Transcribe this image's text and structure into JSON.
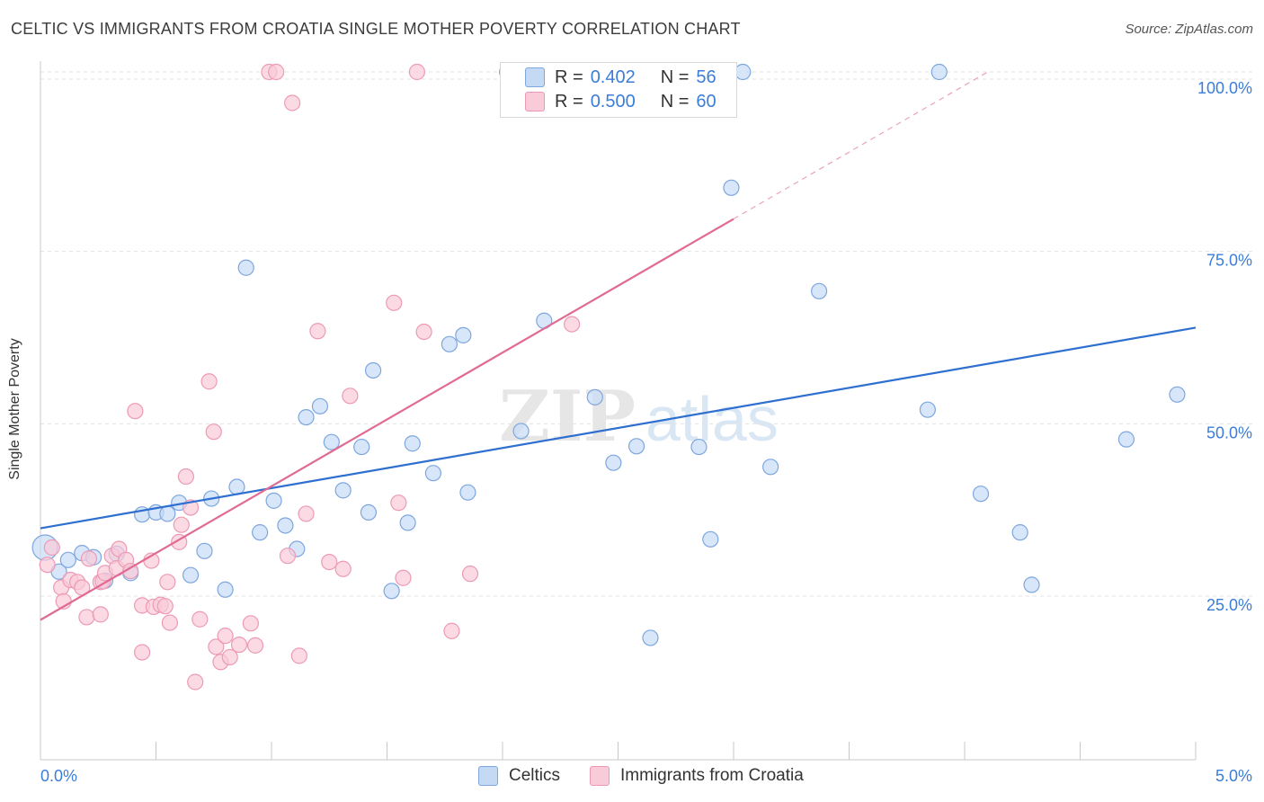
{
  "title": "CELTIC VS IMMIGRANTS FROM CROATIA SINGLE MOTHER POVERTY CORRELATION CHART",
  "source": "Source: ZipAtlas.com",
  "watermark": "ZIPatlas",
  "legend": {
    "rows": [
      {
        "r_label": "R =",
        "r_value": "0.402",
        "n_label": "N =",
        "n_value": "56"
      },
      {
        "r_label": "R =",
        "r_value": "0.500",
        "n_label": "N =",
        "n_value": "60"
      }
    ]
  },
  "bottom_legend": {
    "series1": "Celtics",
    "series2": "Immigrants from Croatia"
  },
  "colors": {
    "blue_fill": "#aecbf0",
    "blue_line": "#2f6fd0",
    "pink_fill": "#f6b8cb",
    "pink_line": "#e06a92",
    "tick_label": "#3b7dd8"
  },
  "chart_data": {
    "type": "scatter",
    "title": "CELTIC VS IMMIGRANTS FROM CROATIA SINGLE MOTHER POVERTY CORRELATION CHART",
    "xlabel": "",
    "ylabel": "Single Mother Poverty",
    "xlim": [
      0,
      5
    ],
    "ylim": [
      0,
      102
    ],
    "x_tick_labels": [
      "0.0%",
      "5.0%"
    ],
    "y_ticks": [
      25,
      50,
      75,
      100
    ],
    "y_tick_labels": [
      "25.0%",
      "50.0%",
      "75.0%",
      "100.0%"
    ],
    "grid": true,
    "legend_position": "top-center",
    "series": [
      {
        "name": "Celtics",
        "r": 0.402,
        "n": 56,
        "trend": {
          "x": [
            0,
            5
          ],
          "y": [
            33.8,
            62.9
          ],
          "dashed_from_x": null
        },
        "points": [
          [
            0.02,
            31.0
          ],
          [
            0.08,
            27.5
          ],
          [
            0.12,
            29.2
          ],
          [
            0.18,
            30.2
          ],
          [
            0.23,
            29.6
          ],
          [
            0.28,
            26.2
          ],
          [
            0.33,
            30.1
          ],
          [
            0.39,
            27.3
          ],
          [
            0.44,
            35.8
          ],
          [
            0.5,
            36.1
          ],
          [
            0.55,
            35.9
          ],
          [
            0.6,
            37.5
          ],
          [
            0.65,
            27.0
          ],
          [
            0.71,
            30.5
          ],
          [
            0.74,
            38.1
          ],
          [
            0.8,
            24.9
          ],
          [
            0.85,
            39.8
          ],
          [
            0.89,
            71.6
          ],
          [
            0.95,
            33.2
          ],
          [
            1.01,
            37.8
          ],
          [
            1.06,
            34.2
          ],
          [
            1.11,
            30.8
          ],
          [
            1.15,
            49.9
          ],
          [
            1.21,
            51.5
          ],
          [
            1.26,
            46.3
          ],
          [
            1.31,
            39.3
          ],
          [
            1.39,
            45.6
          ],
          [
            1.42,
            36.1
          ],
          [
            1.44,
            56.7
          ],
          [
            1.52,
            24.7
          ],
          [
            1.59,
            34.6
          ],
          [
            1.61,
            46.1
          ],
          [
            1.7,
            41.8
          ],
          [
            1.77,
            60.5
          ],
          [
            1.83,
            61.8
          ],
          [
            1.85,
            39.0
          ],
          [
            2.02,
            100.0
          ],
          [
            2.08,
            47.9
          ],
          [
            2.18,
            63.9
          ],
          [
            2.4,
            52.8
          ],
          [
            2.48,
            43.3
          ],
          [
            2.58,
            45.7
          ],
          [
            2.64,
            17.9
          ],
          [
            2.85,
            45.6
          ],
          [
            2.9,
            32.2
          ],
          [
            2.99,
            83.2
          ],
          [
            3.04,
            100.0
          ],
          [
            3.16,
            42.7
          ],
          [
            3.37,
            68.2
          ],
          [
            3.84,
            51.0
          ],
          [
            3.89,
            100.0
          ],
          [
            4.07,
            38.8
          ],
          [
            4.24,
            33.2
          ],
          [
            4.29,
            25.6
          ],
          [
            4.7,
            46.7
          ],
          [
            4.92,
            53.2
          ]
        ]
      },
      {
        "name": "Immigrants from Croatia",
        "r": 0.5,
        "n": 60,
        "trend": {
          "x": [
            0,
            4.1
          ],
          "y": [
            20.5,
            100.0
          ],
          "dashed_from_x": 3.0
        },
        "points": [
          [
            0.03,
            28.5
          ],
          [
            0.05,
            31.0
          ],
          [
            0.09,
            25.2
          ],
          [
            0.1,
            23.2
          ],
          [
            0.13,
            26.3
          ],
          [
            0.16,
            26.0
          ],
          [
            0.18,
            25.2
          ],
          [
            0.2,
            20.9
          ],
          [
            0.21,
            29.4
          ],
          [
            0.26,
            26.0
          ],
          [
            0.26,
            21.3
          ],
          [
            0.27,
            26.1
          ],
          [
            0.28,
            27.3
          ],
          [
            0.31,
            29.8
          ],
          [
            0.33,
            28.0
          ],
          [
            0.34,
            30.8
          ],
          [
            0.37,
            29.2
          ],
          [
            0.39,
            27.6
          ],
          [
            0.41,
            50.8
          ],
          [
            0.44,
            22.6
          ],
          [
            0.44,
            15.8
          ],
          [
            0.48,
            29.1
          ],
          [
            0.49,
            22.4
          ],
          [
            0.52,
            22.7
          ],
          [
            0.54,
            22.5
          ],
          [
            0.55,
            26.0
          ],
          [
            0.56,
            20.1
          ],
          [
            0.6,
            31.8
          ],
          [
            0.61,
            34.3
          ],
          [
            0.63,
            41.3
          ],
          [
            0.65,
            36.8
          ],
          [
            0.67,
            11.5
          ],
          [
            0.69,
            20.6
          ],
          [
            0.73,
            55.1
          ],
          [
            0.75,
            47.8
          ],
          [
            0.76,
            16.6
          ],
          [
            0.78,
            14.4
          ],
          [
            0.8,
            18.2
          ],
          [
            0.82,
            15.1
          ],
          [
            0.86,
            16.9
          ],
          [
            0.91,
            20.0
          ],
          [
            0.93,
            16.8
          ],
          [
            0.99,
            100.0
          ],
          [
            1.02,
            100.0
          ],
          [
            1.07,
            29.8
          ],
          [
            1.09,
            95.5
          ],
          [
            1.12,
            15.3
          ],
          [
            1.15,
            35.9
          ],
          [
            1.2,
            62.4
          ],
          [
            1.25,
            28.9
          ],
          [
            1.31,
            27.9
          ],
          [
            1.34,
            53.0
          ],
          [
            1.53,
            66.5
          ],
          [
            1.55,
            37.5
          ],
          [
            1.57,
            26.6
          ],
          [
            1.63,
            100.0
          ],
          [
            1.66,
            62.3
          ],
          [
            1.78,
            18.9
          ],
          [
            1.86,
            27.2
          ],
          [
            2.3,
            63.4
          ]
        ]
      }
    ]
  }
}
